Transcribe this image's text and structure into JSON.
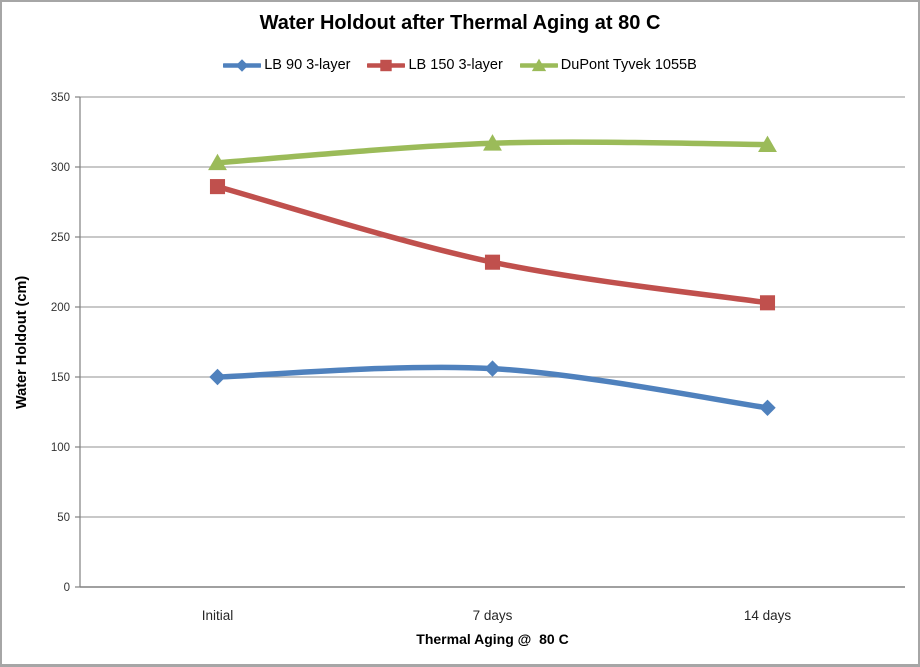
{
  "window": {
    "background": "#ffffff",
    "border_color": "#a6a6a6"
  },
  "chart_data": {
    "type": "line",
    "title": "Water Holdout after Thermal Aging at 80 C",
    "xlabel": "Thermal Aging @  80 C",
    "ylabel": "Water Holdout (cm)",
    "categories": [
      "Initial",
      "7 days",
      "14 days"
    ],
    "series": [
      {
        "name": "LB 90 3-layer",
        "color": "#4F81BD",
        "marker": "diamond",
        "values": [
          150,
          156,
          128
        ]
      },
      {
        "name": "LB 150 3-layer",
        "color": "#C0504D",
        "marker": "square",
        "values": [
          286,
          232,
          203
        ]
      },
      {
        "name": "DuPont Tyvek 1055B",
        "color": "#9BBB59",
        "marker": "triangle",
        "values": [
          303,
          317,
          316
        ]
      }
    ],
    "ylim": [
      0,
      350
    ],
    "yticks": [
      0,
      50,
      100,
      150,
      200,
      250,
      300,
      350
    ],
    "grid": true,
    "smoothed_lines": true,
    "legend_position": "top",
    "gridline_color": "#A6A6A6",
    "axis_color": "#808080",
    "tick_label_color": "#333333"
  }
}
